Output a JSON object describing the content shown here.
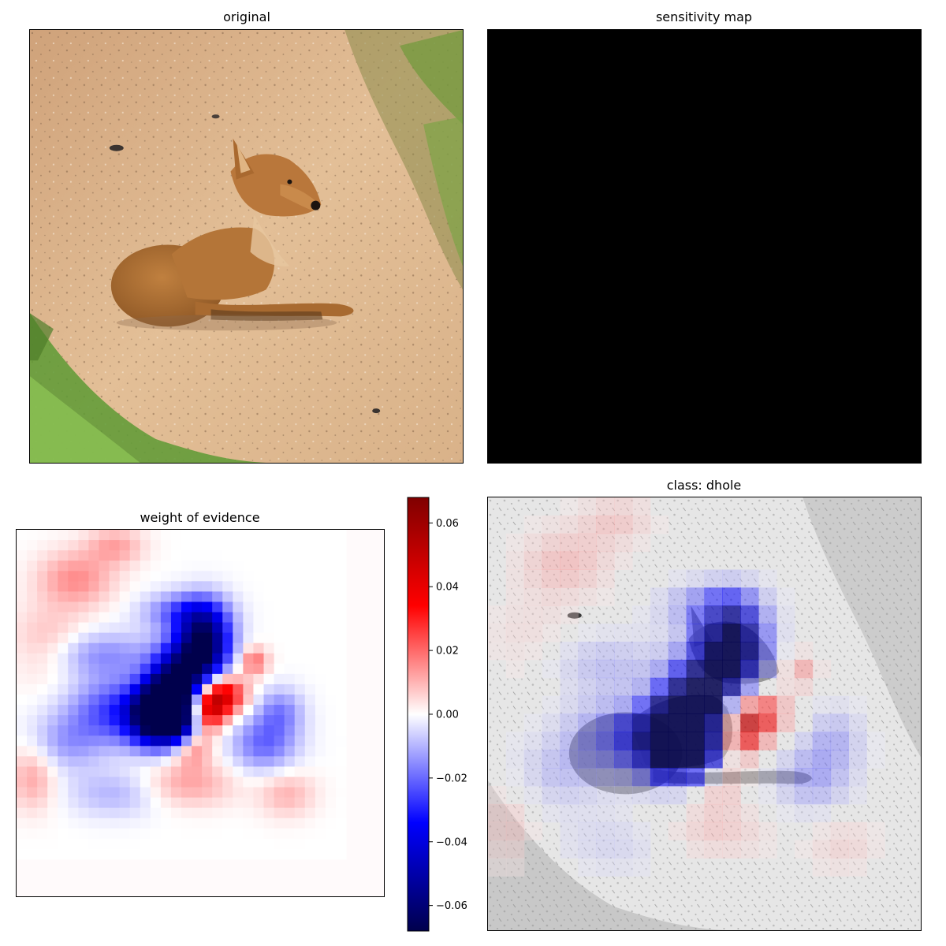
{
  "chart_data": [
    {
      "type": "image",
      "title": "original",
      "content": "photo of a dhole lying on a dirt path with grass"
    },
    {
      "type": "heatmap",
      "title": "sensitivity map",
      "fill": "#000000"
    },
    {
      "type": "heatmap",
      "title": "weight of evidence",
      "colormap": "seismic",
      "colorbar": {
        "ticks": [
          0.06,
          0.04,
          0.02,
          0.0,
          -0.02,
          -0.04,
          -0.06
        ],
        "tick_labels": [
          "0.06",
          "0.04",
          "0.02",
          "0.00",
          "−0.02",
          "−0.04",
          "−0.06"
        ],
        "vmin": -0.068,
        "vmax": 0.068
      }
    },
    {
      "type": "heatmap",
      "title": "class: dhole",
      "overlay": "weight of evidence over grayscale photo"
    }
  ],
  "colors": {
    "negative_max": "#00004c",
    "negative": "#0000ff",
    "neutral": "#ffffff",
    "positive": "#ff0000",
    "positive_max": "#800000"
  }
}
